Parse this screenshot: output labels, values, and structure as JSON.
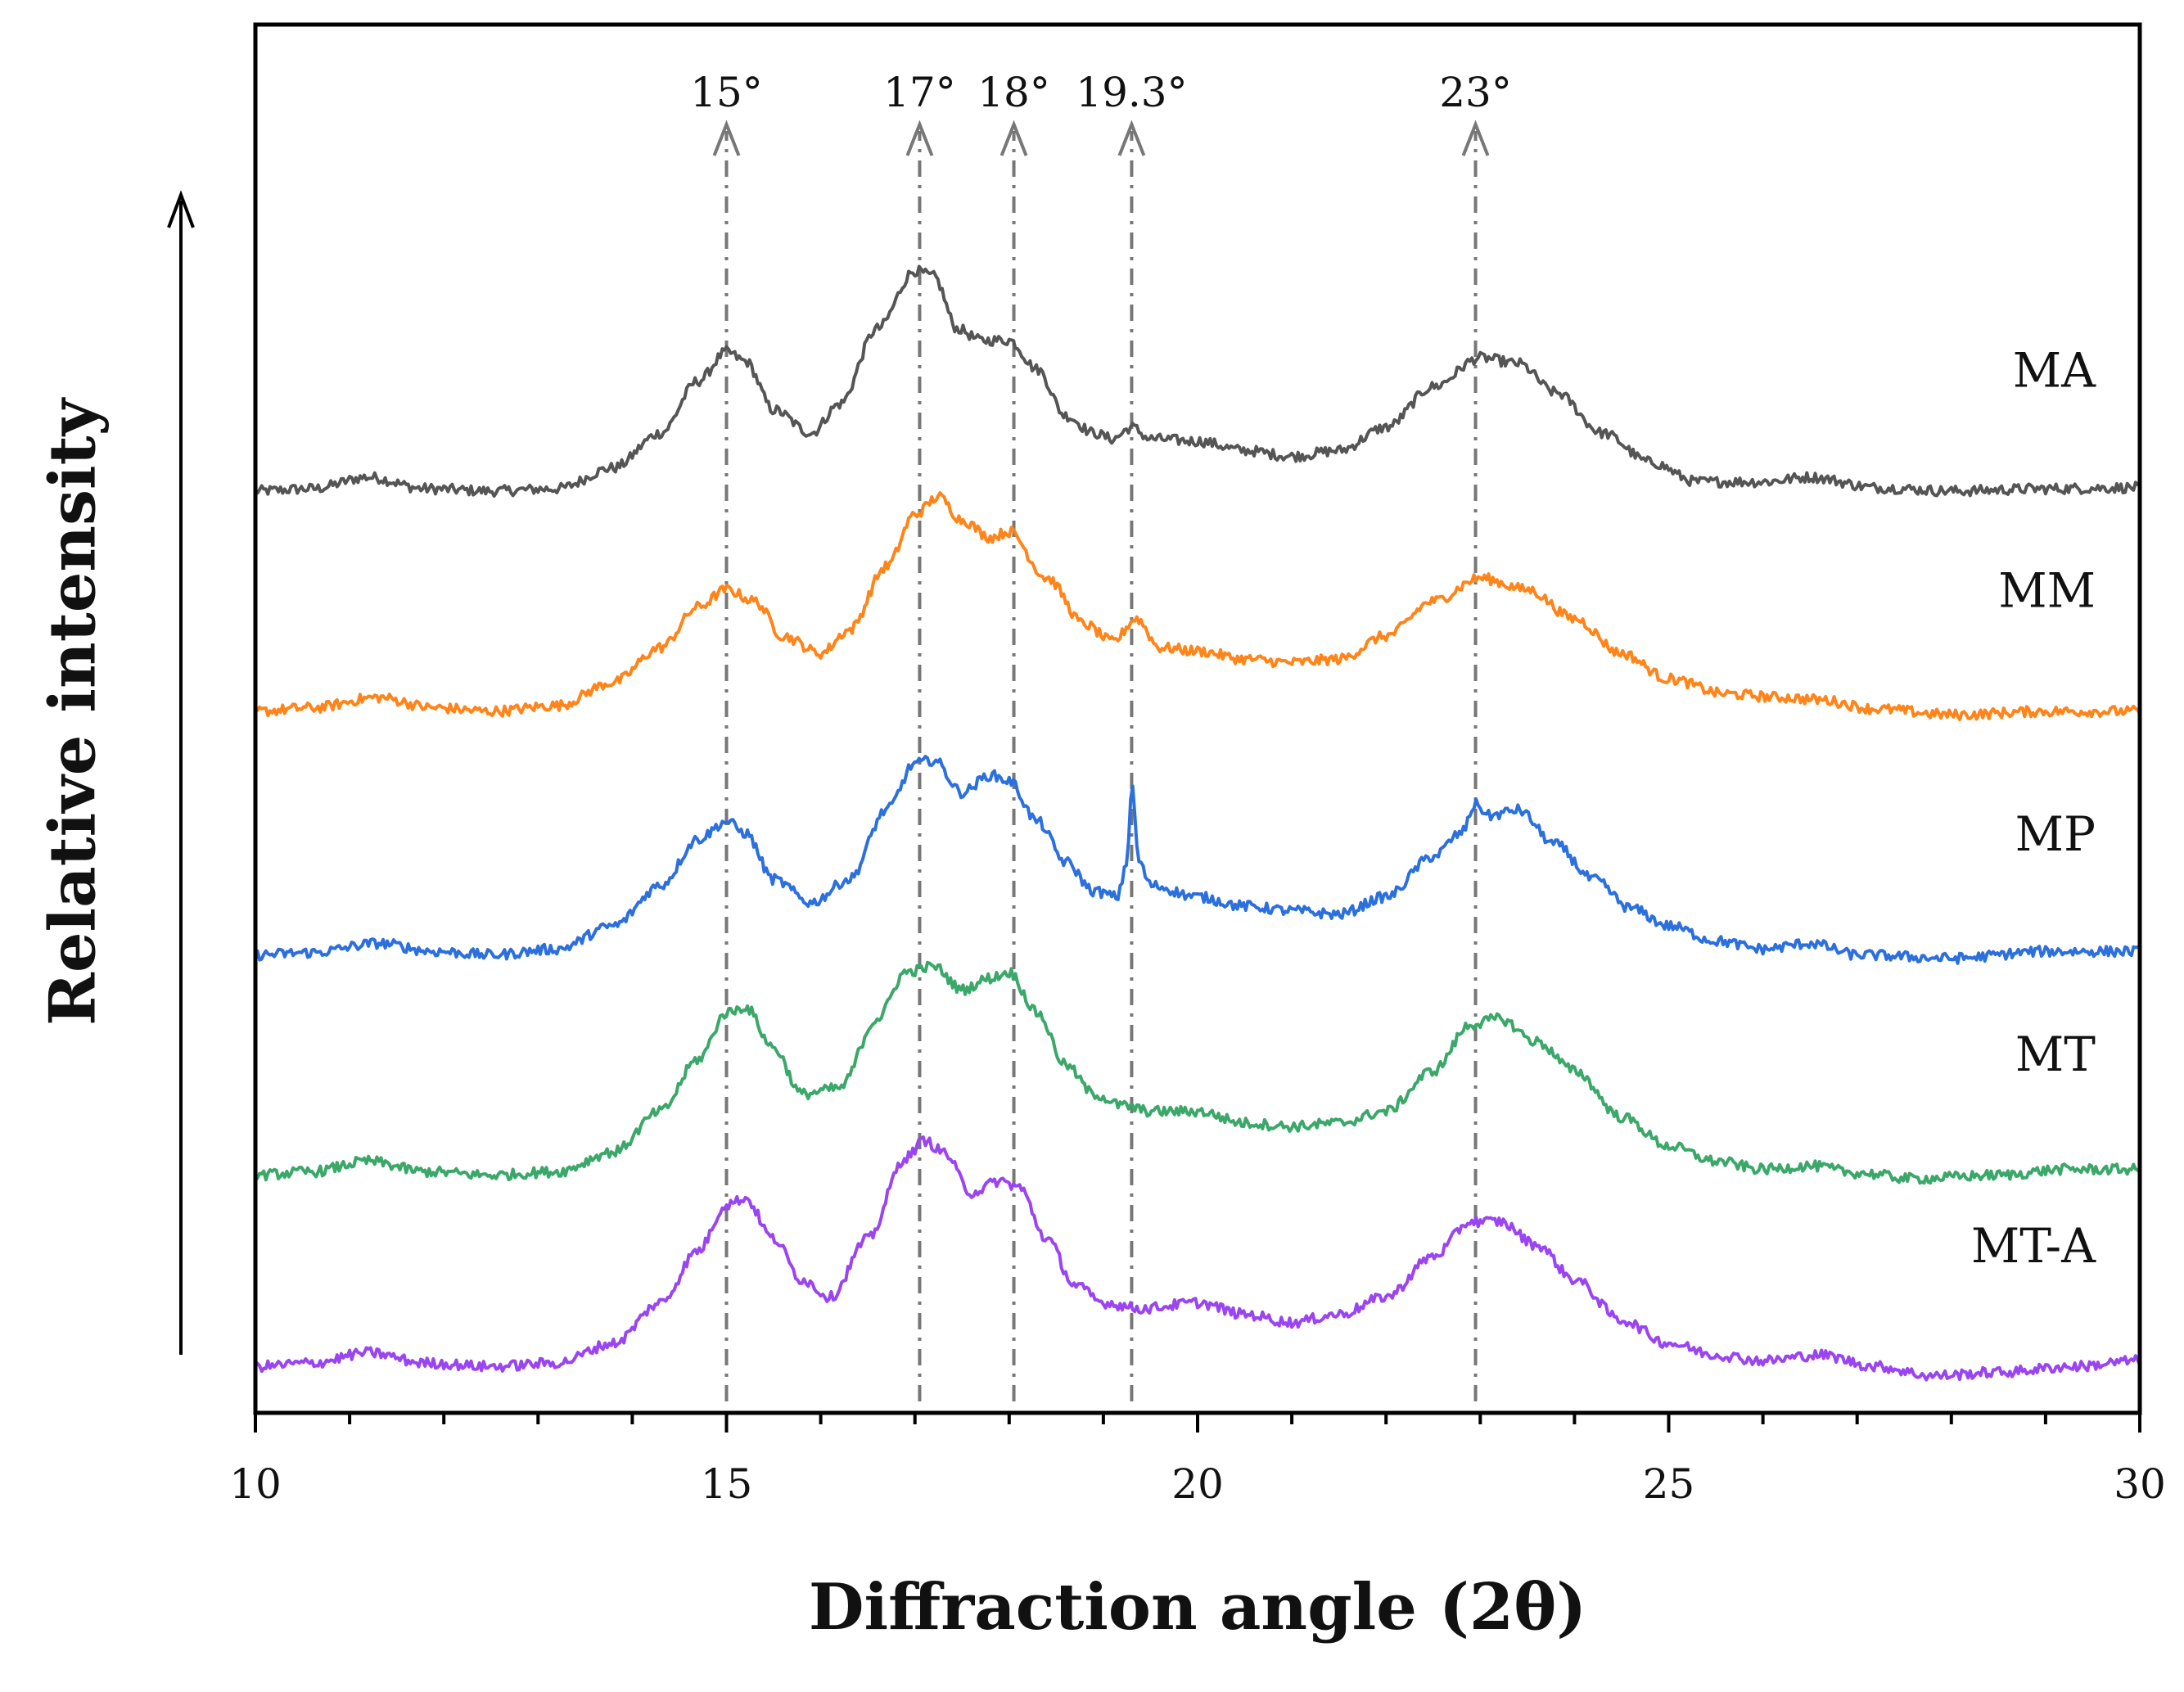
{
  "chart_data": {
    "type": "line",
    "title": "",
    "xlabel": "Diffraction angle (2θ)",
    "ylabel": "Relative intensity",
    "xlim": [
      10,
      30
    ],
    "xticks": [
      10,
      15,
      20,
      25,
      30
    ],
    "x_minor_step": 1,
    "grid": false,
    "y_ticks_shown": false,
    "ylim": [
      -4,
      105
    ],
    "peak_markers": [
      {
        "x": 15.0,
        "label": "15°"
      },
      {
        "x": 17.05,
        "label": "17°"
      },
      {
        "x": 18.05,
        "label": "18°"
      },
      {
        "x": 19.3,
        "label": "19.3°"
      },
      {
        "x": 22.95,
        "label": "23°"
      }
    ],
    "series": [
      {
        "name": "MA",
        "color": "#555555",
        "offset": 75.5,
        "x": [
          10.0,
          10.6,
          11.2,
          11.8,
          12.5,
          13.2,
          13.8,
          14.3,
          14.7,
          15.0,
          15.2,
          15.5,
          15.9,
          16.2,
          16.6,
          17.0,
          17.2,
          17.45,
          17.7,
          18.0,
          18.3,
          18.6,
          18.9,
          19.1,
          19.3,
          19.5,
          20.0,
          20.5,
          21.0,
          21.5,
          22.0,
          22.5,
          23.0,
          23.4,
          23.8,
          24.3,
          24.8,
          25.3,
          26.0,
          26.5,
          27.2,
          28.0,
          29.0,
          30.0
        ],
        "y": [
          0.0,
          0.2,
          1.2,
          0.2,
          0.0,
          0.2,
          2.0,
          5.0,
          9.5,
          12.0,
          11.2,
          7.0,
          5.0,
          7.5,
          14.0,
          19.0,
          18.5,
          14.0,
          13.0,
          13.0,
          10.5,
          6.5,
          5.0,
          4.5,
          5.5,
          4.5,
          4.3,
          3.5,
          3.0,
          3.5,
          5.5,
          9.0,
          11.5,
          11.0,
          8.5,
          5.0,
          2.5,
          0.8,
          0.8,
          1.2,
          0.3,
          0.0,
          0.2,
          0.3
        ]
      },
      {
        "name": "MM",
        "color": "#ff8419",
        "offset": 56.5,
        "x": [
          10.0,
          10.6,
          11.3,
          11.9,
          12.5,
          13.2,
          13.8,
          14.3,
          14.7,
          15.0,
          15.3,
          15.6,
          16.0,
          16.3,
          16.7,
          17.0,
          17.25,
          17.5,
          17.8,
          18.0,
          18.4,
          18.8,
          19.1,
          19.35,
          19.6,
          20.0,
          20.5,
          21.0,
          21.5,
          22.0,
          22.5,
          23.0,
          23.5,
          24.0,
          24.5,
          25.0,
          25.6,
          26.2,
          26.6,
          27.2,
          28.0,
          29.0,
          30.0
        ],
        "y": [
          0.0,
          0.3,
          1.2,
          0.3,
          0.0,
          0.5,
          2.5,
          5.5,
          9.0,
          10.5,
          9.5,
          6.5,
          5.0,
          7.0,
          12.5,
          17.0,
          18.5,
          16.5,
          15.0,
          15.5,
          11.5,
          7.5,
          6.0,
          8.0,
          5.5,
          5.2,
          4.5,
          4.2,
          4.5,
          6.5,
          9.5,
          11.5,
          10.5,
          8.0,
          5.0,
          2.8,
          1.5,
          1.2,
          1.0,
          0.2,
          -0.3,
          0.0,
          0.0
        ]
      },
      {
        "name": "MP",
        "color": "#2c70dd",
        "offset": 35.5,
        "x": [
          10.0,
          10.6,
          11.3,
          11.9,
          12.5,
          13.2,
          13.8,
          14.3,
          14.7,
          15.0,
          15.2,
          15.5,
          15.9,
          16.3,
          16.7,
          17.0,
          17.2,
          17.5,
          17.8,
          18.0,
          18.3,
          18.6,
          18.9,
          19.15,
          19.25,
          19.3,
          19.38,
          19.5,
          20.0,
          20.5,
          21.0,
          21.5,
          22.0,
          22.5,
          22.8,
          22.95,
          23.1,
          23.4,
          23.8,
          24.2,
          24.6,
          25.0,
          25.5,
          26.0,
          26.5,
          27.0,
          28.0,
          29.0,
          30.0
        ],
        "y": [
          0.0,
          0.2,
          1.0,
          0.3,
          0.0,
          0.5,
          2.5,
          6.0,
          10.0,
          11.5,
          10.5,
          6.5,
          4.5,
          6.5,
          12.5,
          16.5,
          16.8,
          14.0,
          15.5,
          15.0,
          11.5,
          8.0,
          5.5,
          5.0,
          8.0,
          14.5,
          8.0,
          6.0,
          5.0,
          4.2,
          3.8,
          3.5,
          5.0,
          8.5,
          10.5,
          13.0,
          12.0,
          12.5,
          9.5,
          6.5,
          4.0,
          2.5,
          1.2,
          0.5,
          1.0,
          0.0,
          -0.3,
          0.3,
          0.3
        ]
      },
      {
        "name": "MT",
        "color": "#3ba86a",
        "offset": 16.5,
        "x": [
          10.0,
          10.6,
          11.2,
          11.8,
          12.5,
          13.2,
          13.8,
          14.3,
          14.7,
          15.0,
          15.2,
          15.5,
          15.8,
          16.2,
          16.6,
          16.9,
          17.2,
          17.5,
          17.8,
          18.0,
          18.3,
          18.6,
          18.9,
          19.2,
          19.5,
          20.0,
          20.5,
          21.0,
          21.5,
          22.0,
          22.5,
          22.9,
          23.2,
          23.6,
          24.0,
          24.5,
          25.0,
          25.5,
          26.0,
          26.5,
          27.0,
          27.6,
          28.5,
          29.2,
          30.0
        ],
        "y": [
          0.0,
          0.3,
          1.2,
          0.3,
          0.0,
          0.3,
          2.0,
          5.5,
          10.0,
          14.0,
          14.5,
          11.0,
          7.0,
          7.5,
          13.5,
          17.5,
          18.0,
          16.0,
          17.0,
          17.5,
          14.0,
          9.5,
          7.0,
          6.0,
          5.5,
          5.5,
          4.5,
          4.2,
          4.5,
          5.5,
          9.0,
          13.0,
          13.5,
          11.5,
          9.0,
          5.0,
          2.5,
          1.2,
          0.5,
          0.8,
          0.2,
          -0.3,
          0.0,
          0.5,
          0.5
        ]
      },
      {
        "name": "MT-A",
        "color": "#9b44f2",
        "offset": 0.0,
        "x": [
          10.0,
          10.6,
          11.2,
          11.8,
          12.5,
          13.2,
          13.8,
          14.3,
          14.7,
          15.0,
          15.2,
          15.5,
          15.8,
          16.1,
          16.5,
          16.9,
          17.1,
          17.3,
          17.6,
          17.9,
          18.1,
          18.4,
          18.7,
          19.0,
          19.4,
          20.0,
          20.5,
          21.0,
          21.5,
          22.0,
          22.5,
          22.9,
          23.2,
          23.6,
          24.0,
          24.5,
          25.0,
          25.5,
          26.0,
          26.6,
          27.2,
          27.8,
          28.5,
          29.3,
          30.0
        ],
        "y": [
          0.0,
          0.3,
          1.2,
          0.3,
          0.0,
          0.3,
          2.0,
          5.5,
          10.0,
          14.0,
          14.5,
          11.0,
          7.5,
          6.0,
          11.0,
          18.0,
          19.5,
          18.5,
          15.0,
          16.0,
          15.5,
          11.0,
          7.0,
          5.5,
          5.0,
          5.5,
          4.5,
          3.8,
          4.5,
          6.0,
          9.5,
          12.5,
          12.5,
          10.5,
          7.5,
          4.0,
          2.0,
          1.0,
          0.5,
          1.0,
          0.0,
          -0.8,
          -0.5,
          0.0,
          0.5
        ]
      }
    ]
  }
}
